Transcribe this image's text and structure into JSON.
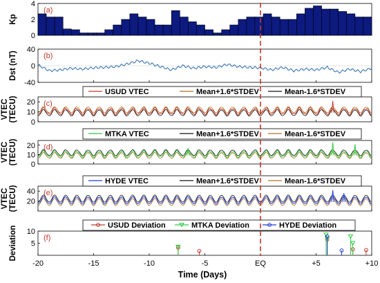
{
  "x_axis": {
    "label": "Time (Days)",
    "range": [
      -20,
      10
    ],
    "ticks": [
      {
        "value": -20,
        "label": "-20"
      },
      {
        "value": -15,
        "label": "-15"
      },
      {
        "value": -10,
        "label": "-10"
      },
      {
        "value": -5,
        "label": "-5"
      },
      {
        "value": 0,
        "label": "EQ"
      },
      {
        "value": 5,
        "label": "+5"
      },
      {
        "value": 10,
        "label": "+10"
      }
    ]
  },
  "eq_line": {
    "x": 0,
    "color": "#c0392b"
  },
  "chart_data": [
    {
      "panel": "(a)",
      "type": "bar",
      "ylabel": "Kp",
      "ylim": [
        0,
        4
      ],
      "yticks": [
        0,
        2,
        4
      ],
      "color": "#0d1a80",
      "bins_start": -20,
      "bin_width": 0.75,
      "values": [
        2.7,
        2.3,
        2.3,
        0.8,
        0.7,
        0.3,
        0.3,
        0.3,
        0.7,
        1.3,
        2.0,
        2.7,
        2.3,
        2.0,
        1.3,
        1.3,
        3.1,
        2.3,
        1.7,
        1.3,
        0.7,
        0.3,
        0.7,
        1.3,
        2.0,
        2.3,
        2.3,
        2.7,
        2.3,
        2.0,
        2.0,
        2.7,
        3.4,
        3.7,
        3.3,
        3.3,
        3.0,
        2.7,
        2.3,
        2.3
      ]
    },
    {
      "panel": "(b)",
      "type": "line",
      "ylabel": "Dst (nT)",
      "ylim": [
        -40,
        40
      ],
      "yticks": [
        -40,
        0,
        40
      ],
      "color": "#2b6cb0",
      "x": [
        -20,
        -19,
        -18,
        -17,
        -16,
        -15,
        -14,
        -13,
        -12,
        -11,
        -10,
        -9,
        -8,
        -7,
        -6,
        -5,
        -4,
        -3,
        -2,
        -1,
        0,
        1,
        2,
        3,
        4,
        5,
        6,
        7,
        8,
        9,
        10
      ],
      "values": [
        2,
        -12,
        -10,
        -6,
        -8,
        -5,
        -4,
        -2,
        4,
        12,
        6,
        -2,
        -10,
        0,
        -6,
        -2,
        -4,
        3,
        -2,
        -4,
        -5,
        -10,
        -4,
        -12,
        -8,
        -10,
        -4,
        -16,
        -8,
        -14,
        -6
      ]
    },
    {
      "panel": "(c)",
      "type": "line",
      "ylabel": "VTEC (TECU)",
      "ylim": [
        0,
        25
      ],
      "yticks": [
        0,
        10,
        20
      ],
      "legend": [
        "USUD VTEC",
        "Mean+1.6*STDEV",
        "Mean-1.6*STDEV"
      ],
      "colors": [
        "#c0392b",
        "#b07020",
        "#111111"
      ],
      "base": 9,
      "amp": 6,
      "day_spike_amp": [],
      "spikes": [
        {
          "day": 6,
          "value": 21
        }
      ]
    },
    {
      "panel": "(d)",
      "type": "line",
      "ylabel": "VTEC (TECU)",
      "ylim": [
        0,
        25
      ],
      "yticks": [
        0,
        10,
        20
      ],
      "legend": [
        "MTKA VTEC",
        "Mean+1.6*STDEV",
        "Mean-1.6*STDEV"
      ],
      "colors": [
        "#2ecc40",
        "#111111",
        "#b07020"
      ],
      "base": 9,
      "amp": 6,
      "spikes": [
        {
          "day": -7,
          "value": 17
        },
        {
          "day": 6,
          "value": 23
        },
        {
          "day": 8,
          "value": 21
        }
      ]
    },
    {
      "panel": "(e)",
      "type": "line",
      "ylabel": "VTEC (TECU)",
      "ylim": [
        0,
        50
      ],
      "yticks": [
        20,
        40
      ],
      "legend": [
        "HYDE VTEC",
        "Mean+1.6*STDEV",
        "Mean-1.6*STDEV"
      ],
      "colors": [
        "#1f3bd6",
        "#111111",
        "#b07020"
      ],
      "base": 18,
      "amp": 14,
      "spikes": [
        {
          "day": 6,
          "value": 42
        },
        {
          "day": 7,
          "value": 36
        }
      ]
    },
    {
      "panel": "(f)",
      "type": "scatter",
      "ylabel": "Deviation",
      "ylim": [
        0,
        10
      ],
      "yticks": [
        5,
        10
      ],
      "legend": [
        "USUD Deviation",
        "MTKA Deviation",
        "HYDE Deviation"
      ],
      "colors": [
        "#c0392b",
        "#2ecc40",
        "#1f3bd6"
      ],
      "series": [
        {
          "name": "USUD Deviation",
          "points": [
            [
              -7.4,
              3.2
            ],
            [
              -5.5,
              1.8
            ],
            [
              6,
              6.5
            ],
            [
              8.3,
              2.5
            ],
            [
              9.5,
              2.2
            ]
          ]
        },
        {
          "name": "MTKA Deviation",
          "points": [
            [
              -7.4,
              3.5
            ],
            [
              5.9,
              8.5
            ],
            [
              6,
              7.0
            ],
            [
              8.1,
              7.8
            ],
            [
              8.3,
              5.0
            ]
          ]
        },
        {
          "name": "HYDE Deviation",
          "points": [
            [
              6,
              7.8
            ],
            [
              7.3,
              2.0
            ]
          ]
        }
      ]
    }
  ]
}
